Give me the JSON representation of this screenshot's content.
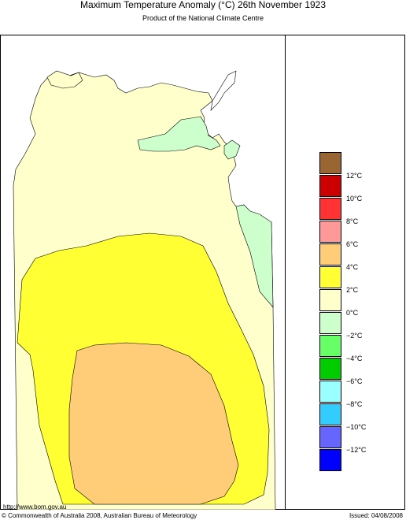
{
  "header": {
    "title": "Maximum Temperature Anomaly (°C)  26th November 1923",
    "subtitle": "Product of the National Climate Centre"
  },
  "legend": {
    "items": [
      {
        "label": "",
        "color": "#996633"
      },
      {
        "label": "12°C",
        "color": "#cc0000"
      },
      {
        "label": "10°C",
        "color": "#ff3333"
      },
      {
        "label": "8°C",
        "color": "#ff9999"
      },
      {
        "label": "6°C",
        "color": "#ffcc77"
      },
      {
        "label": "4°C",
        "color": "#ffff33"
      },
      {
        "label": "2°C",
        "color": "#ffffcc"
      },
      {
        "label": "0°C",
        "color": "#ccffcc"
      },
      {
        "label": "−2°C",
        "color": "#66ff66"
      },
      {
        "label": "−4°C",
        "color": "#00cc00"
      },
      {
        "label": "−6°C",
        "color": "#99ffff"
      },
      {
        "label": "−8°C",
        "color": "#33ccff"
      },
      {
        "label": "−10°C",
        "color": "#6666ff"
      },
      {
        "label": "−12°C",
        "color": "#0000ff"
      }
    ]
  },
  "map": {
    "regions": [
      {
        "name": "anomaly 0 to 2°C",
        "color": "#ffffcc"
      },
      {
        "name": "anomaly 2 to 4°C",
        "color": "#ffff33"
      },
      {
        "name": "anomaly 4 to 6°C",
        "color": "#ffcc77"
      },
      {
        "name": "anomaly -2 to 0°C",
        "color": "#ccffcc"
      }
    ]
  },
  "footer": {
    "url": "http://www.bom.gov.au",
    "copyright": "© Commonwealth of Australia 2008, Australian Bureau of Meteorology",
    "issued": "Issued: 04/08/2008"
  }
}
